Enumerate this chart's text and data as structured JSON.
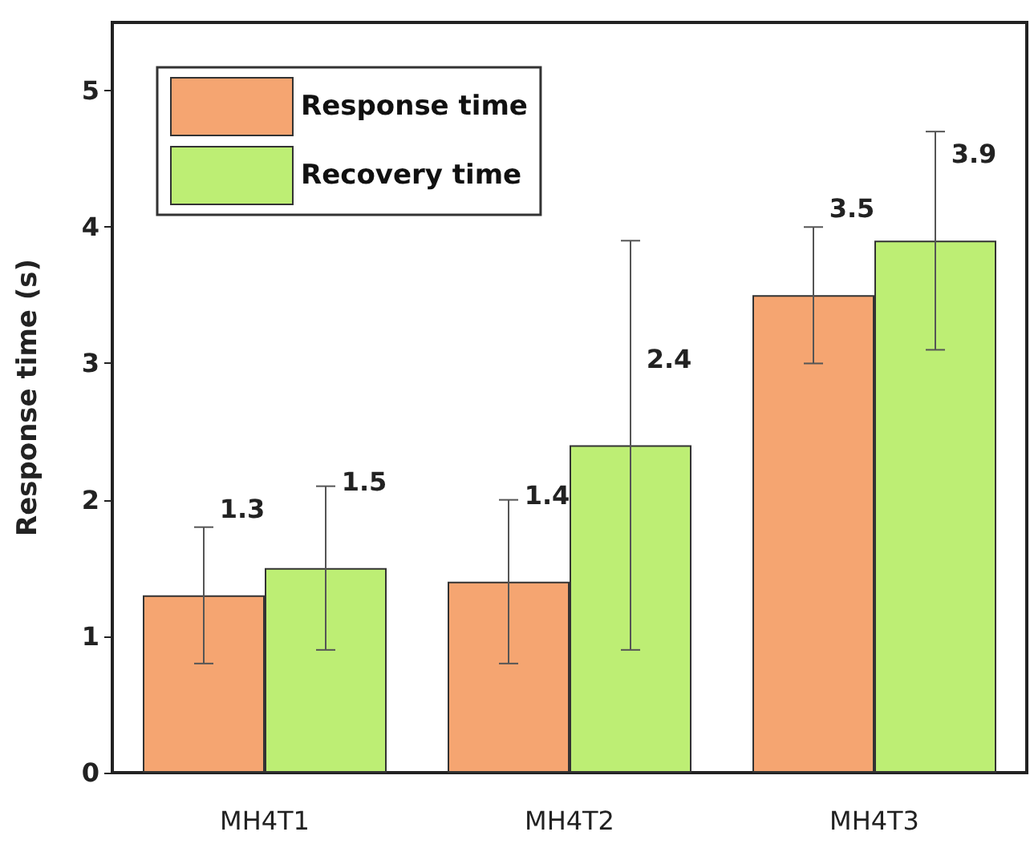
{
  "chart_data": {
    "type": "bar",
    "ylabel": "Response time (s)",
    "categories": [
      "MH4T1",
      "MH4T2",
      "MH4T3"
    ],
    "series": [
      {
        "name": "Response time",
        "color": "#f5a571",
        "values": [
          1.3,
          1.4,
          3.5
        ],
        "errors": [
          0.5,
          0.6,
          0.5
        ]
      },
      {
        "name": "Recovery time",
        "color": "#bdee74",
        "values": [
          1.5,
          2.4,
          3.9
        ],
        "errors": [
          0.6,
          1.5,
          0.8
        ]
      }
    ],
    "ylim": [
      0,
      5.5
    ],
    "yticks": [
      0,
      1,
      2,
      3,
      4,
      5
    ],
    "grid": false,
    "legend": "top left",
    "data_labels": true
  }
}
